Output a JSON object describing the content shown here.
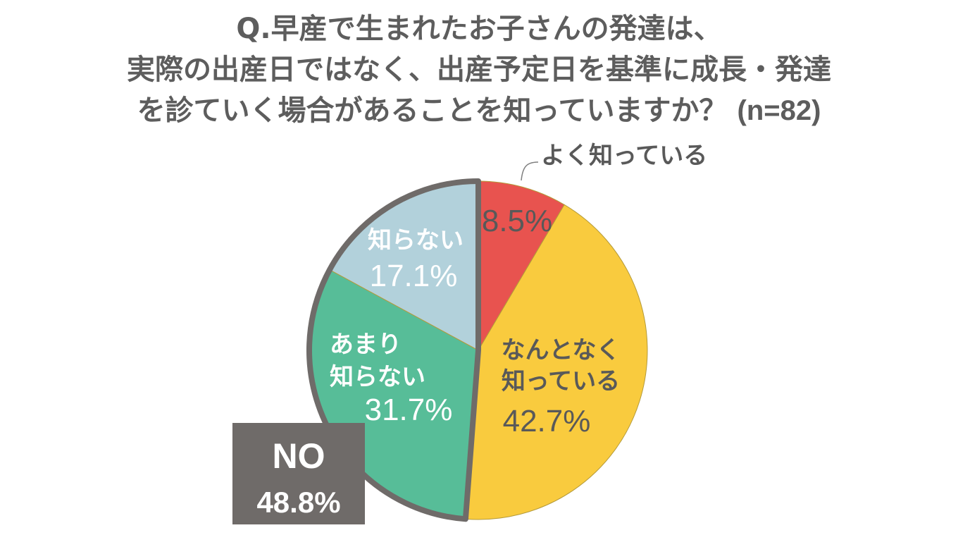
{
  "title": {
    "line1": "Q.早産で生まれたお子さんの発達は、",
    "line2": "実際の出産日ではなく、出産予定日を基準に成長・発達",
    "line3": "を診ていく場合があることを知っていますか？",
    "sample": "(n=82)"
  },
  "chart_data": {
    "type": "pie",
    "categories": [
      "よく知っている",
      "なんとなく知っている",
      "あまり知らない",
      "知らない"
    ],
    "values": [
      8.5,
      42.7,
      31.7,
      17.1
    ],
    "value_labels": [
      "8.5%",
      "42.7%",
      "31.7%",
      "17.1%"
    ],
    "colors": [
      "#e8534f",
      "#f9cb3e",
      "#57bd98",
      "#b2d1db"
    ],
    "start_angle_deg": 0,
    "direction": "clockwise",
    "group_highlight": {
      "label": "NO",
      "value": "48.8%",
      "members": [
        "あまり知らない",
        "知らない"
      ],
      "outline_color": "#6f6b69"
    }
  }
}
